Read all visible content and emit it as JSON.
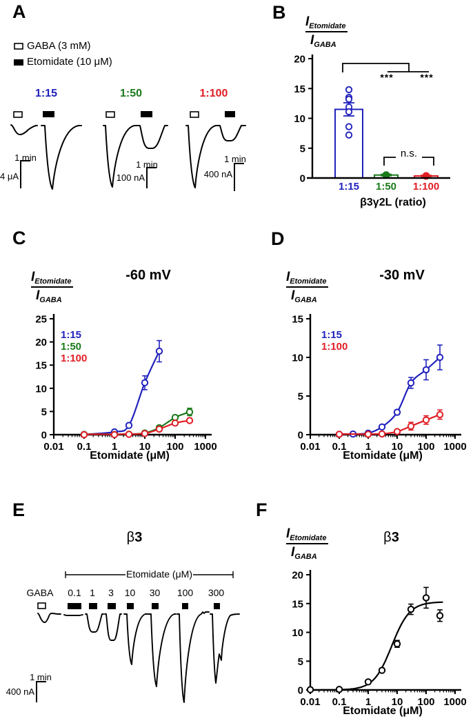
{
  "colors": {
    "blue": "#2121bd",
    "green": "#1a7a1a",
    "red": "#e01e25",
    "black": "#000000"
  },
  "labels": {
    "I": "I",
    "etomidate": "Etomidate",
    "gaba": "GABA"
  },
  "panelA": {
    "label": "A",
    "legend": [
      {
        "symbol": "open-square",
        "text": "GABA (3 mM)"
      },
      {
        "symbol": "filled-square",
        "text": "Etomidate (10 μM)"
      }
    ],
    "groups": [
      {
        "ratio": "1:15",
        "color": "blue",
        "v_scale": "4 μA",
        "t_scale": "1 min",
        "gaba_response": "small",
        "etomidate_response": "large"
      },
      {
        "ratio": "1:50",
        "color": "green",
        "v_scale": "100 nA",
        "t_scale": "1 min",
        "gaba_response": "large",
        "etomidate_response": "medium"
      },
      {
        "ratio": "1:100",
        "color": "red",
        "v_scale": "400 nA",
        "t_scale": "1 min",
        "gaba_response": "large",
        "etomidate_response": "small"
      }
    ]
  },
  "panelB": {
    "label": "B",
    "sig_left": "***",
    "sig_right": "***",
    "ns": "n.s.",
    "xlabel": "β3γ2L (ratio)"
  },
  "panelC": {
    "label": "C",
    "title": "-60 mV",
    "xlabel": "Etomidate (μM)"
  },
  "panelD": {
    "label": "D",
    "title": "-30 mV",
    "xlabel": "Etomidate (μM)"
  },
  "panelE": {
    "label": "E",
    "title_beta": "β",
    "title_sub": "3",
    "span_label": "Etomidate (μM)",
    "gaba_label": "GABA",
    "concentrations": [
      "0.1",
      "1",
      "3",
      "10",
      "30",
      "100",
      "300"
    ],
    "v_scale": "400 nA",
    "t_scale": "1 min",
    "relative_peak_amplitudes": {
      "GABA": 14,
      "0.1": 2,
      "1": 26,
      "3": 38,
      "10": 73,
      "30": 105,
      "100": 128,
      "300": 100
    }
  },
  "panelF": {
    "label": "F",
    "title_beta": "β",
    "title_sub": "3",
    "xlabel": "Etomidate (μM)"
  },
  "chart_data": [
    {
      "panel": "B",
      "type": "bar",
      "title": "",
      "ylabel": "I_Etomidate / I_GABA",
      "xlabel": "β3γ2L (ratio)",
      "categories": [
        "1:15",
        "1:50",
        "1:100"
      ],
      "values": [
        11.5,
        0.5,
        0.35
      ],
      "errors": [
        1.1,
        0.12,
        0.1
      ],
      "bar_colors": [
        "blue",
        "green",
        "red"
      ],
      "scatter_points_1_15": [
        14.8,
        13.5,
        13.2,
        11.9,
        11.1,
        8.6,
        7.2
      ],
      "mean_point_1_50": 0.5,
      "mean_point_1_100": 0.35,
      "ylim": [
        0,
        20
      ],
      "yticks": [
        0,
        5,
        10,
        15,
        20
      ],
      "significance": [
        {
          "groups": [
            "1:15",
            "1:50"
          ],
          "label": "***"
        },
        {
          "groups": [
            "1:15",
            "1:100"
          ],
          "label": "***"
        },
        {
          "groups": [
            "1:50",
            "1:100"
          ],
          "label": "n.s."
        }
      ]
    },
    {
      "panel": "C",
      "type": "line-scatter",
      "title": "-60 mV",
      "xlabel": "Etomidate (μM)",
      "ylabel": "I_Etomidate / I_GABA",
      "xscale": "log",
      "xlim": [
        0.01,
        1000
      ],
      "ylim": [
        0,
        25
      ],
      "xticks": [
        0.01,
        0.1,
        1,
        10,
        100,
        1000
      ],
      "yticks": [
        0,
        5,
        10,
        15,
        20,
        25
      ],
      "legend_position": "upper-left",
      "series": [
        {
          "name": "1:15",
          "color": "blue",
          "x": [
            0.1,
            1,
            3,
            10,
            30
          ],
          "y": [
            0.05,
            0.6,
            2.0,
            11.2,
            18.0
          ],
          "err": [
            0,
            0,
            0.3,
            1.5,
            2.3
          ]
        },
        {
          "name": "1:50",
          "color": "green",
          "x": [
            0.1,
            1,
            3,
            10,
            30,
            100,
            300
          ],
          "y": [
            0.05,
            0.05,
            0.1,
            0.35,
            1.5,
            3.7,
            4.9
          ],
          "err": [
            0,
            0,
            0,
            0,
            0.2,
            0.3,
            0.8
          ]
        },
        {
          "name": "1:100",
          "color": "red",
          "x": [
            0.1,
            1,
            3,
            10,
            30,
            100,
            300
          ],
          "y": [
            0,
            0,
            0.08,
            0.25,
            1.2,
            2.5,
            3.05
          ],
          "err": [
            0,
            0,
            0,
            0,
            0.2,
            0.3,
            0.45
          ]
        }
      ]
    },
    {
      "panel": "D",
      "type": "line-scatter",
      "title": "-30 mV",
      "xlabel": "Etomidate (μM)",
      "ylabel": "I_Etomidate / I_GABA",
      "xscale": "log",
      "xlim": [
        0.01,
        1000
      ],
      "ylim": [
        0,
        15
      ],
      "xticks": [
        0.01,
        0.1,
        1,
        10,
        100,
        1000
      ],
      "yticks": [
        0,
        5,
        10,
        15
      ],
      "legend_position": "upper-left",
      "series": [
        {
          "name": "1:15",
          "color": "blue",
          "x": [
            0.1,
            0.3,
            1,
            3,
            10,
            30,
            100,
            300
          ],
          "y": [
            0.05,
            0.08,
            0.2,
            1.0,
            2.9,
            6.7,
            8.4,
            10.0
          ],
          "err": [
            0,
            0,
            0,
            0.1,
            0.3,
            0.7,
            1.3,
            1.6
          ]
        },
        {
          "name": "1:100",
          "color": "red",
          "x": [
            0.1,
            1,
            3,
            10,
            30,
            100,
            300
          ],
          "y": [
            0.05,
            0.05,
            0.1,
            0.4,
            1.1,
            1.9,
            2.6
          ],
          "err": [
            0,
            0,
            0,
            0.1,
            0.5,
            0.55,
            0.6
          ]
        }
      ]
    },
    {
      "panel": "F",
      "type": "line-scatter",
      "title": "β3",
      "xlabel": "Etomidate (μM)",
      "ylabel": "I_Etomidate / I_GABA",
      "xscale": "log",
      "xlim": [
        0.01,
        1000
      ],
      "ylim": [
        0,
        20
      ],
      "xticks": [
        0.01,
        0.1,
        1,
        10,
        100,
        1000
      ],
      "yticks": [
        0,
        5,
        10,
        15,
        20
      ],
      "series": [
        {
          "name": "β3",
          "color": "black",
          "x": [
            0.01,
            0.1,
            1,
            3,
            10,
            30,
            100,
            300
          ],
          "y": [
            0.05,
            0.1,
            1.4,
            3.4,
            8.0,
            14.0,
            16.0,
            12.9
          ],
          "err": [
            0,
            0,
            0,
            0.3,
            0.6,
            0.9,
            1.8,
            1.0
          ],
          "fit": {
            "top": 15.3,
            "ec50": 6.5,
            "hill": 1.4
          }
        }
      ]
    }
  ]
}
